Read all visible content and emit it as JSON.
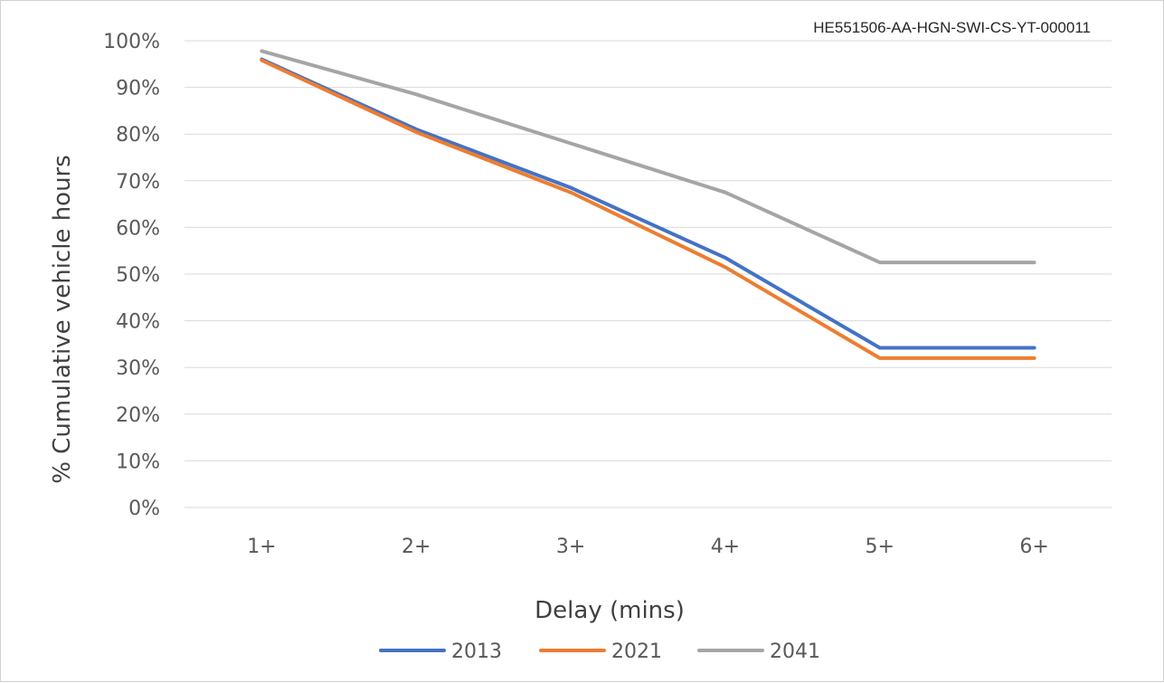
{
  "document_code": "HE551506-AA-HGN-SWI-CS-YT-000011",
  "chart_data": {
    "type": "line",
    "categories": [
      "1+",
      "2+",
      "3+",
      "4+",
      "5+",
      "6+"
    ],
    "xlabel": "Delay (mins)",
    "ylabel": "% Cumulative vehicle hours",
    "ylim": [
      0,
      100
    ],
    "y_ticks": [
      "0%",
      "10%",
      "20%",
      "30%",
      "40%",
      "50%",
      "60%",
      "70%",
      "80%",
      "90%",
      "100%"
    ],
    "grid": "horizontal",
    "legend_position": "bottom",
    "series": [
      {
        "name": "2013",
        "color": "#4472c4",
        "values": [
          96,
          81,
          68.5,
          53.5,
          34.2,
          34.2
        ]
      },
      {
        "name": "2021",
        "color": "#ed7d31",
        "values": [
          95.8,
          80.4,
          67.5,
          51.5,
          32,
          32
        ]
      },
      {
        "name": "2041",
        "color": "#a5a5a5",
        "values": [
          97.8,
          88.5,
          78,
          67.5,
          52.5,
          52.5
        ]
      }
    ]
  }
}
